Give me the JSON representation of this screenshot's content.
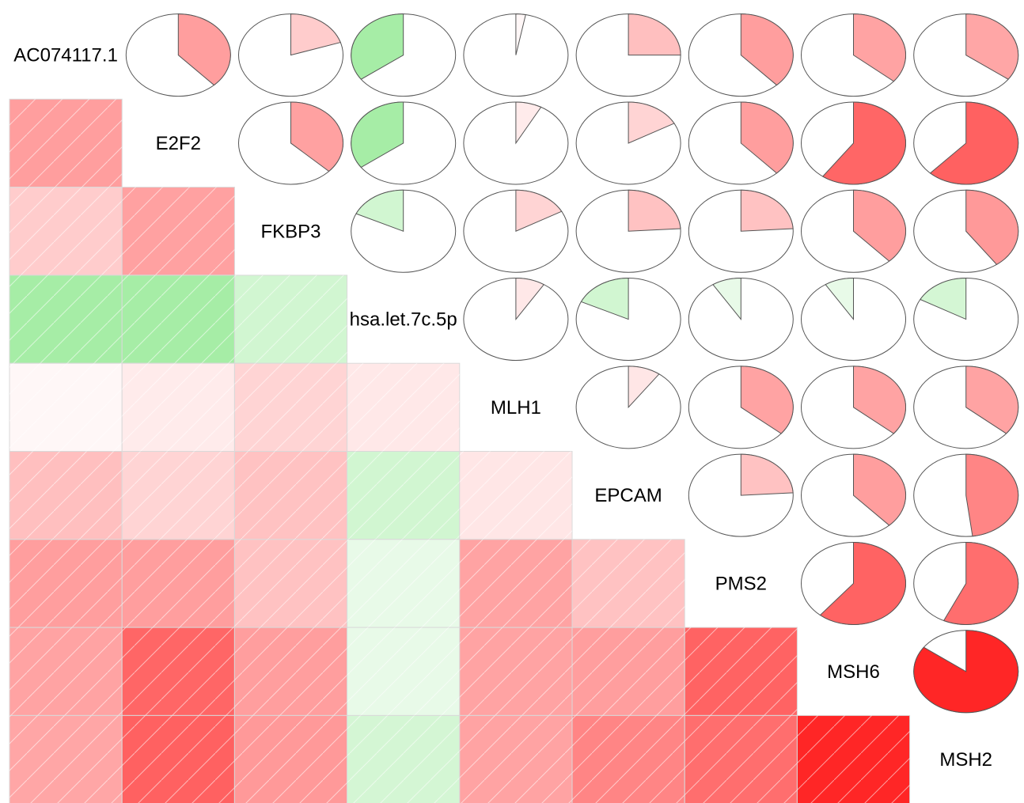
{
  "chart_data": {
    "type": "heatmap",
    "subtype": "correlogram",
    "lower_panel": "shade",
    "upper_panel": "pie",
    "variables": [
      "AC074117.1",
      "E2F2",
      "FKBP3",
      "hsa.let.7c.5p",
      "MLH1",
      "EPCAM",
      "PMS2",
      "MSH6",
      "MSH2"
    ],
    "correlations": [
      [
        1.0,
        0.38,
        0.2,
        -0.35,
        0.03,
        0.25,
        0.38,
        0.36,
        0.35
      ],
      [
        0.38,
        1.0,
        0.37,
        -0.35,
        0.08,
        0.17,
        0.38,
        0.6,
        0.62
      ],
      [
        0.2,
        0.37,
        1.0,
        -0.18,
        0.17,
        0.24,
        0.24,
        0.38,
        0.4
      ],
      [
        -0.35,
        -0.35,
        -0.18,
        1.0,
        0.09,
        -0.18,
        -0.09,
        -0.09,
        -0.17
      ],
      [
        0.03,
        0.08,
        0.17,
        0.09,
        1.0,
        0.1,
        0.36,
        0.36,
        0.36
      ],
      [
        0.25,
        0.17,
        0.24,
        -0.18,
        0.1,
        1.0,
        0.24,
        0.38,
        0.48
      ],
      [
        0.38,
        0.38,
        0.24,
        -0.09,
        0.36,
        0.24,
        1.0,
        0.61,
        0.57
      ],
      [
        0.36,
        0.6,
        0.38,
        -0.09,
        0.36,
        0.38,
        0.61,
        1.0,
        0.85
      ],
      [
        0.35,
        0.62,
        0.4,
        -0.17,
        0.36,
        0.48,
        0.57,
        0.85,
        1.0
      ]
    ],
    "value_range": [
      -1,
      1
    ],
    "colors": {
      "positive": "#ff0000",
      "negative": "#00cc00",
      "neutral": "#ffffff",
      "outline": "#555555"
    }
  }
}
